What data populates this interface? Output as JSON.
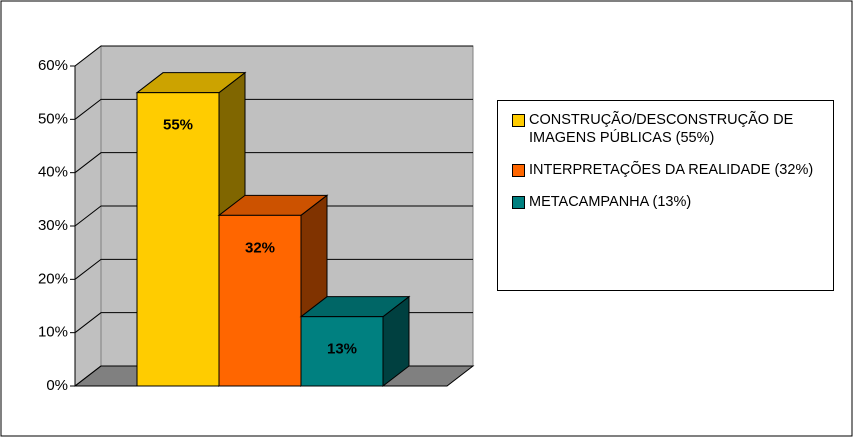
{
  "chart_data": {
    "type": "bar3d",
    "series": [
      {
        "name": "CONSTRUÇÃO/DESCONSTRUÇÃO DE IMAGENS PÚBLICAS (55%)",
        "color": "#ffcc00",
        "values": [
          55
        ],
        "value_labels": [
          "55%"
        ]
      },
      {
        "name": "INTERPRETAÇÕES DA REALIDADE (32%)",
        "color": "#ff6600",
        "values": [
          32
        ],
        "value_labels": [
          "32%"
        ]
      },
      {
        "name": "METACAMPANHA (13%)",
        "color": "#008080",
        "values": [
          13
        ],
        "value_labels": [
          "13%"
        ]
      }
    ],
    "ylim": [
      0,
      60
    ],
    "yticks": [
      {
        "value": 0,
        "label": "0%"
      },
      {
        "value": 10,
        "label": "10%"
      },
      {
        "value": 20,
        "label": "20%"
      },
      {
        "value": 30,
        "label": "30%"
      },
      {
        "value": 40,
        "label": "40%"
      },
      {
        "value": 50,
        "label": "50%"
      },
      {
        "value": 60,
        "label": "60%"
      }
    ],
    "grid": true,
    "legend": "right"
  }
}
